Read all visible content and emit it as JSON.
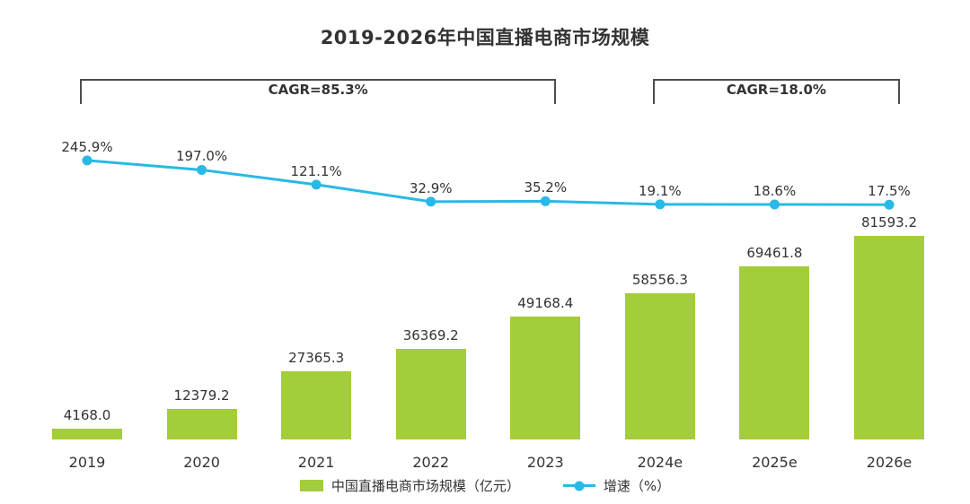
{
  "title": "2019-2026年中国直播电商市场规模",
  "colors": {
    "bar": "#a3cd3a",
    "line": "#29b9e6",
    "text": "#333333",
    "bracket": "#4d4d4d"
  },
  "annotations": [
    {
      "label": "CAGR=85.3%",
      "from_index": 0,
      "to_index": 4
    },
    {
      "label": "CAGR=18.0%",
      "from_index": 5,
      "to_index": 7
    }
  ],
  "legend": [
    {
      "label": "中国直播电商市场规模（亿元）",
      "type": "bar"
    },
    {
      "label": "增速（%）",
      "type": "line"
    }
  ],
  "chart_data": {
    "type": "bar+line",
    "title": "2019-2026年中国直播电商市场规模",
    "categories": [
      "2019",
      "2020",
      "2021",
      "2022",
      "2023",
      "2024e",
      "2025e",
      "2026e"
    ],
    "series": [
      {
        "name": "中国直播电商市场规模（亿元）",
        "type": "bar",
        "values": [
          4168.0,
          12379.2,
          27365.3,
          36369.2,
          49168.4,
          58556.3,
          69461.8,
          81593.2
        ],
        "labels": [
          "4168.0",
          "12379.2",
          "27365.3",
          "36369.2",
          "49168.4",
          "58556.3",
          "69461.8",
          "81593.2"
        ]
      },
      {
        "name": "增速（%）",
        "type": "line",
        "values": [
          245.9,
          197.0,
          121.1,
          32.9,
          35.2,
          19.1,
          18.6,
          17.5
        ],
        "labels": [
          "245.9%",
          "197.0%",
          "121.1%",
          "32.9%",
          "35.2%",
          "19.1%",
          "18.6%",
          "17.5%"
        ]
      }
    ],
    "xlabel": "",
    "ylabel": "",
    "grid": false,
    "legend_position": "bottom"
  }
}
